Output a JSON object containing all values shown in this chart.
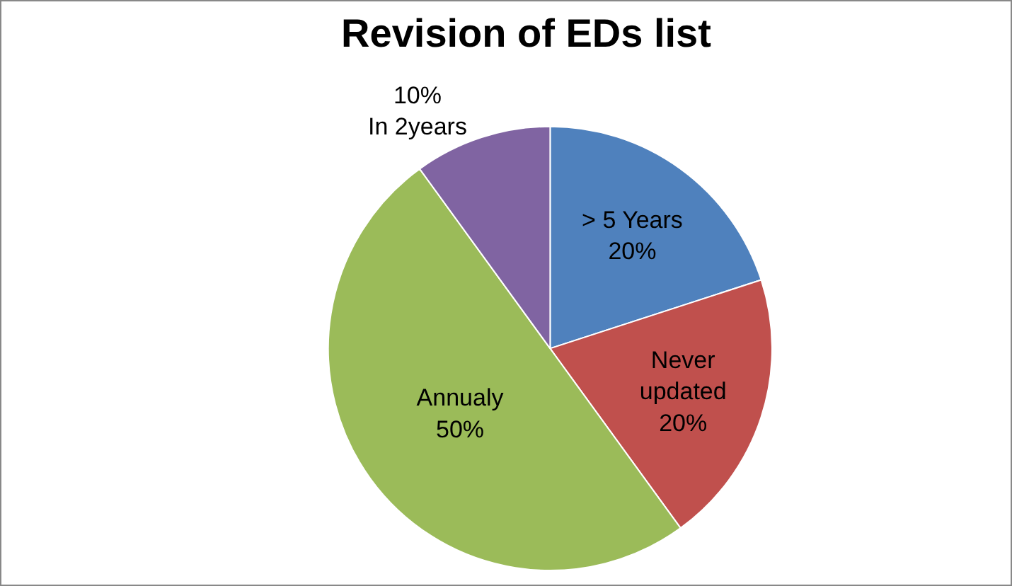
{
  "chart_data": {
    "type": "pie",
    "title": "Revision of EDs list",
    "categories": [
      "> 5 Years",
      "Never updated",
      "Annualy",
      "In 2years"
    ],
    "values": [
      20,
      20,
      50,
      10
    ],
    "colors": [
      "#4f81bd",
      "#c0504d",
      "#9bbb59",
      "#8064a2"
    ],
    "value_labels": [
      "20%",
      "20%",
      "50%",
      "10%"
    ]
  }
}
